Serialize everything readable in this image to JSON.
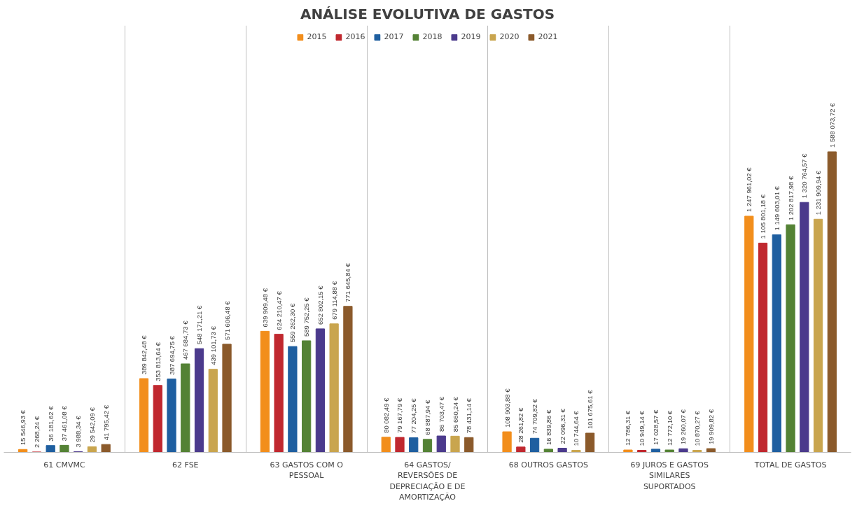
{
  "chart_data": {
    "type": "bar",
    "title": "ANÁLISE EVOLUTIVA DE GASTOS",
    "categories": [
      "61 CMVMC",
      "62 FSE",
      "63 GASTOS COM O PESSOAL",
      "64 GASTOS/ REVERSÕES DE DEPRECIAÇÃO E DE AMORTIZAÇÃO",
      "68 OUTROS GASTOS",
      "69 JUROS E GASTOS SIMILARES SUPORTADOS",
      "TOTAL DE GASTOS"
    ],
    "series": [
      {
        "name": "2015",
        "color": "#f28e1c",
        "values": [
          15546.93,
          389842.48,
          639909.48,
          80082.49,
          108903.88,
          12786.31,
          1247961.02
        ],
        "value_labels": [
          "15 546,93 €",
          "389 842,48 €",
          "639 909,48 €",
          "80 082,49 €",
          "108 903,88 €",
          "12 786,31 €",
          "1 247 961,02 €"
        ]
      },
      {
        "name": "2016",
        "color": "#c0282f",
        "values": [
          2268.24,
          353813.64,
          624210.47,
          79167.79,
          28261.82,
          10949.14,
          1105801.18
        ],
        "value_labels": [
          "2 268,24 €",
          "353 813,64 €",
          "624 210,47 €",
          "79 167,79 €",
          "28 261,82 €",
          "10 949,14 €",
          "1 105 801,18 €"
        ]
      },
      {
        "name": "2017",
        "color": "#1f5fa0",
        "values": [
          36181.62,
          387694.75,
          559262.3,
          77204.25,
          74709.82,
          17028.57,
          1149603.01
        ],
        "value_labels": [
          "36 181,62 €",
          "387 694,75 €",
          "559 262,30 €",
          "77 204,25 €",
          "74 709,82 €",
          "17 028,57 €",
          "1 149 603,01 €"
        ]
      },
      {
        "name": "2018",
        "color": "#548235",
        "values": [
          37461.08,
          467684.73,
          589752.25,
          68887.94,
          16839.86,
          12772.1,
          1202817.98
        ],
        "value_labels": [
          "37 461,08 €",
          "467 684,73 €",
          "589 752,25 €",
          "68 887,94 €",
          "16 839,86 €",
          "12 772,10 €",
          "1 202 817,98 €"
        ]
      },
      {
        "name": "2019",
        "color": "#4b3a8c",
        "values": [
          3988.34,
          548171.21,
          652802.15,
          86703.47,
          22096.31,
          19260.07,
          1320764.57
        ],
        "value_labels": [
          "3 988,34 €",
          "548 171,21 €",
          "652 802,15 €",
          "86 703,47 €",
          "22 096,31 €",
          "19 260,07 €",
          "1 320 764,57 €"
        ]
      },
      {
        "name": "2020",
        "color": "#c9a54e",
        "values": [
          29542.09,
          439101.73,
          679114.88,
          85660.24,
          10744.64,
          10870.27,
          1231909.94
        ],
        "value_labels": [
          "29 542,09 €",
          "439 101,73 €",
          "679 114,88 €",
          "85 660,24 €",
          "10 744,64 €",
          "10 870,27 €",
          "1 231 909,94 €"
        ]
      },
      {
        "name": "2021",
        "color": "#8b5a2b",
        "values": [
          41795.42,
          571606.48,
          771645.84,
          78431.14,
          101675.61,
          19909.82,
          1588073.72
        ],
        "value_labels": [
          "41 795,42 €",
          "571 606,48 €",
          "771 645,84 €",
          "78 431,14 €",
          "101 675,61 €",
          "19 909,82 €",
          "1 588 073,72 €"
        ]
      }
    ],
    "grid": "x",
    "legend": "top"
  }
}
